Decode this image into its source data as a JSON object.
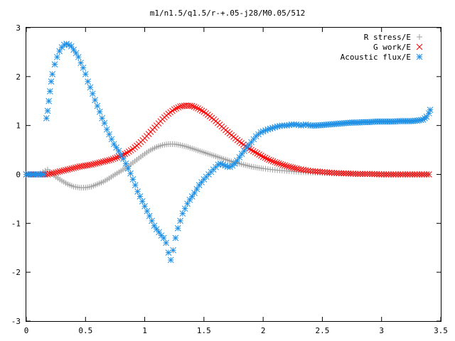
{
  "chart_data": {
    "type": "scatter",
    "title": "m1/n1.5/q1.5/r-+.05-j28/M0.05/512",
    "xlabel": "",
    "ylabel": "",
    "xlim": [
      0,
      3.5
    ],
    "ylim": [
      -3,
      3
    ],
    "xticks": [
      "0",
      "0.5",
      "1",
      "1.5",
      "2",
      "2.5",
      "3",
      "3.5"
    ],
    "yticks": [
      "3",
      "2",
      "1",
      "0",
      "-1",
      "-2",
      "-3"
    ],
    "legend_position": "top-right",
    "grid": false,
    "series": [
      {
        "name": "R stress/E",
        "color": "#a0a0a0",
        "marker": "plus",
        "x": [
          0.0,
          0.1,
          0.18,
          0.2,
          0.25,
          0.3,
          0.35,
          0.4,
          0.45,
          0.5,
          0.55,
          0.6,
          0.65,
          0.7,
          0.75,
          0.8,
          0.85,
          0.9,
          0.95,
          1.0,
          1.05,
          1.1,
          1.15,
          1.2,
          1.25,
          1.3,
          1.35,
          1.4,
          1.45,
          1.5,
          1.55,
          1.6,
          1.65,
          1.7,
          1.75,
          1.8,
          1.85,
          1.9,
          1.95,
          2.0,
          2.1,
          2.2,
          2.3,
          2.4,
          2.5,
          2.6,
          2.7,
          2.8,
          2.9,
          3.0,
          3.1,
          3.2,
          3.3,
          3.4
        ],
        "y": [
          0.0,
          0.0,
          0.1,
          0.05,
          -0.05,
          -0.13,
          -0.2,
          -0.25,
          -0.27,
          -0.27,
          -0.25,
          -0.2,
          -0.15,
          -0.08,
          0.0,
          0.07,
          0.15,
          0.24,
          0.33,
          0.42,
          0.5,
          0.56,
          0.6,
          0.62,
          0.62,
          0.6,
          0.57,
          0.53,
          0.49,
          0.45,
          0.41,
          0.37,
          0.33,
          0.29,
          0.25,
          0.22,
          0.19,
          0.16,
          0.14,
          0.12,
          0.09,
          0.07,
          0.05,
          0.04,
          0.03,
          0.02,
          0.02,
          0.01,
          0.01,
          0.01,
          0.0,
          0.0,
          0.0,
          0.0
        ]
      },
      {
        "name": "G work/E",
        "color": "#ff0000",
        "marker": "cross",
        "x": [
          0.0,
          0.1,
          0.18,
          0.25,
          0.3,
          0.35,
          0.4,
          0.45,
          0.5,
          0.55,
          0.6,
          0.65,
          0.7,
          0.75,
          0.8,
          0.85,
          0.9,
          0.95,
          1.0,
          1.05,
          1.1,
          1.15,
          1.2,
          1.25,
          1.3,
          1.35,
          1.4,
          1.45,
          1.5,
          1.55,
          1.6,
          1.65,
          1.7,
          1.75,
          1.8,
          1.85,
          1.9,
          1.95,
          2.0,
          2.05,
          2.1,
          2.15,
          2.2,
          2.25,
          2.3,
          2.4,
          2.5,
          2.6,
          2.7,
          2.8,
          2.9,
          3.0,
          3.1,
          3.2,
          3.3,
          3.4
        ],
        "y": [
          0.0,
          0.0,
          0.0,
          0.04,
          0.07,
          0.1,
          0.13,
          0.16,
          0.18,
          0.2,
          0.23,
          0.26,
          0.29,
          0.33,
          0.38,
          0.44,
          0.52,
          0.62,
          0.74,
          0.87,
          1.0,
          1.13,
          1.24,
          1.33,
          1.39,
          1.41,
          1.4,
          1.35,
          1.28,
          1.19,
          1.09,
          0.98,
          0.87,
          0.77,
          0.67,
          0.58,
          0.5,
          0.43,
          0.36,
          0.3,
          0.25,
          0.21,
          0.17,
          0.14,
          0.11,
          0.07,
          0.05,
          0.03,
          0.02,
          0.01,
          0.01,
          0.0,
          0.0,
          0.0,
          0.0,
          0.0
        ]
      },
      {
        "name": "Acoustic flux/E",
        "color": "#1e90e6",
        "marker": "star",
        "x": [
          0.0,
          0.05,
          0.1,
          0.15,
          0.17,
          0.18,
          0.19,
          0.2,
          0.21,
          0.22,
          0.24,
          0.26,
          0.28,
          0.3,
          0.32,
          0.34,
          0.36,
          0.38,
          0.4,
          0.42,
          0.44,
          0.46,
          0.48,
          0.5,
          0.52,
          0.54,
          0.56,
          0.58,
          0.6,
          0.62,
          0.64,
          0.66,
          0.68,
          0.7,
          0.72,
          0.74,
          0.76,
          0.78,
          0.8,
          0.82,
          0.84,
          0.86,
          0.88,
          0.9,
          0.92,
          0.94,
          0.96,
          0.98,
          1.0,
          1.02,
          1.04,
          1.06,
          1.08,
          1.1,
          1.12,
          1.14,
          1.16,
          1.18,
          1.2,
          1.22,
          1.24,
          1.26,
          1.28,
          1.3,
          1.32,
          1.34,
          1.36,
          1.38,
          1.4,
          1.42,
          1.44,
          1.46,
          1.48,
          1.5,
          1.52,
          1.54,
          1.56,
          1.58,
          1.6,
          1.62,
          1.64,
          1.66,
          1.68,
          1.7,
          1.72,
          1.74,
          1.76,
          1.78,
          1.8,
          1.82,
          1.84,
          1.86,
          1.88,
          1.9,
          1.92,
          1.94,
          1.96,
          1.98,
          2.0,
          2.04,
          2.08,
          2.12,
          2.16,
          2.2,
          2.24,
          2.28,
          2.32,
          2.36,
          2.4,
          2.45,
          2.5,
          2.55,
          2.6,
          2.65,
          2.7,
          2.75,
          2.8,
          2.85,
          2.9,
          2.95,
          3.0,
          3.05,
          3.1,
          3.15,
          3.2,
          3.25,
          3.3,
          3.35,
          3.38,
          3.4,
          3.41
        ],
        "y": [
          0.0,
          0.0,
          0.0,
          0.0,
          1.15,
          1.3,
          1.5,
          1.7,
          1.9,
          2.05,
          2.25,
          2.4,
          2.52,
          2.6,
          2.65,
          2.67,
          2.65,
          2.62,
          2.55,
          2.48,
          2.4,
          2.28,
          2.18,
          2.05,
          1.9,
          1.78,
          1.65,
          1.52,
          1.4,
          1.28,
          1.15,
          1.05,
          0.92,
          0.82,
          0.72,
          0.62,
          0.55,
          0.48,
          0.4,
          0.32,
          0.22,
          0.12,
          0.02,
          -0.1,
          -0.22,
          -0.35,
          -0.45,
          -0.55,
          -0.65,
          -0.75,
          -0.85,
          -0.95,
          -1.05,
          -1.12,
          -1.18,
          -1.25,
          -1.3,
          -1.4,
          -1.6,
          -1.75,
          -1.55,
          -1.3,
          -1.1,
          -0.95,
          -0.8,
          -0.7,
          -0.6,
          -0.52,
          -0.45,
          -0.38,
          -0.3,
          -0.22,
          -0.16,
          -0.1,
          -0.05,
          0.0,
          0.05,
          0.1,
          0.15,
          0.2,
          0.22,
          0.2,
          0.18,
          0.16,
          0.15,
          0.18,
          0.22,
          0.28,
          0.35,
          0.42,
          0.48,
          0.55,
          0.6,
          0.66,
          0.72,
          0.78,
          0.82,
          0.86,
          0.88,
          0.92,
          0.95,
          0.98,
          1.0,
          1.0,
          1.02,
          1.02,
          1.0,
          1.02,
          1.0,
          1.0,
          1.01,
          1.02,
          1.03,
          1.04,
          1.05,
          1.06,
          1.06,
          1.07,
          1.07,
          1.08,
          1.08,
          1.08,
          1.08,
          1.09,
          1.09,
          1.09,
          1.1,
          1.12,
          1.18,
          1.25,
          1.32
        ]
      }
    ]
  }
}
